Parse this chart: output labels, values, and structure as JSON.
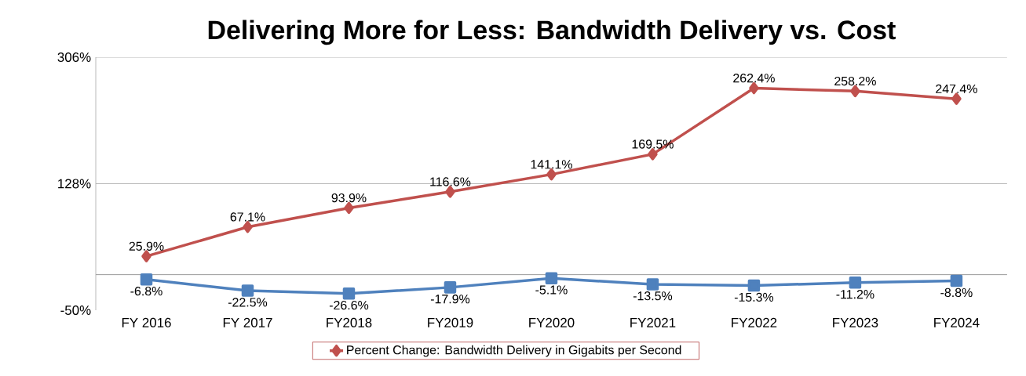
{
  "chart_data": {
    "type": "line",
    "title": "Delivering More for Less: Bandwidth Delivery vs. Cost",
    "categories": [
      "FY 2016",
      "FY 2017",
      "FY2018",
      "FY2019",
      "FY2020",
      "FY2021",
      "FY2022",
      "FY2023",
      "FY2024"
    ],
    "series": [
      {
        "name": "Percent Change: Bandwidth Delivery in Gigabits per Second",
        "color": "#c0504d",
        "marker": "diamond",
        "values": [
          25.9,
          67.1,
          93.9,
          116.6,
          141.1,
          169.5,
          262.4,
          258.2,
          247.4
        ],
        "value_labels": [
          "25.9%",
          "67.1%",
          "93.9%",
          "116.6%",
          "141.1%",
          "169.5%",
          "262.4%",
          "258.2%",
          "247.4%"
        ]
      },
      {
        "color": "#4f81bd",
        "marker": "square",
        "values": [
          -6.8,
          -22.5,
          -26.6,
          -17.9,
          -5.1,
          -13.5,
          -15.3,
          -11.2,
          -8.8
        ],
        "value_labels": [
          "-6.8%",
          "-22.5%",
          "-26.6%",
          "-17.9%",
          "-5.1%",
          "-13.5%",
          "-15.3%",
          "-11.2%",
          "-8.8%"
        ]
      }
    ],
    "ylim": [
      -50,
      306
    ],
    "yticks": [
      {
        "value": -50,
        "label": "-50%"
      },
      {
        "value": 128,
        "label": "128%"
      },
      {
        "value": 306,
        "label": "306%"
      }
    ],
    "grid": "y",
    "legend": "bottom",
    "line_style": "solid"
  }
}
